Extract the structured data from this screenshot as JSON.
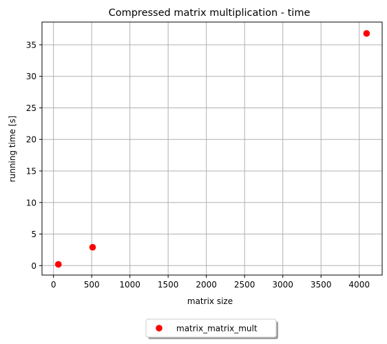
{
  "chart_data": {
    "type": "scatter",
    "title": "Compressed matrix multiplication - time",
    "xlabel": "matrix size",
    "ylabel": "running time [s]",
    "x_ticks": [
      0,
      500,
      1000,
      1500,
      2000,
      2500,
      3000,
      3500,
      4000
    ],
    "y_ticks": [
      0,
      5,
      10,
      15,
      20,
      25,
      30,
      35
    ],
    "xlim": [
      -150,
      4300
    ],
    "ylim": [
      -1.5,
      38.6
    ],
    "grid": true,
    "legend_position": "bottom-center, below plot",
    "series": [
      {
        "name": "matrix_matrix_mult",
        "color": "#ff0000",
        "marker": "circle",
        "points": [
          {
            "x": 64,
            "y": 0.2
          },
          {
            "x": 512,
            "y": 2.9
          },
          {
            "x": 4096,
            "y": 36.8
          }
        ]
      }
    ]
  }
}
